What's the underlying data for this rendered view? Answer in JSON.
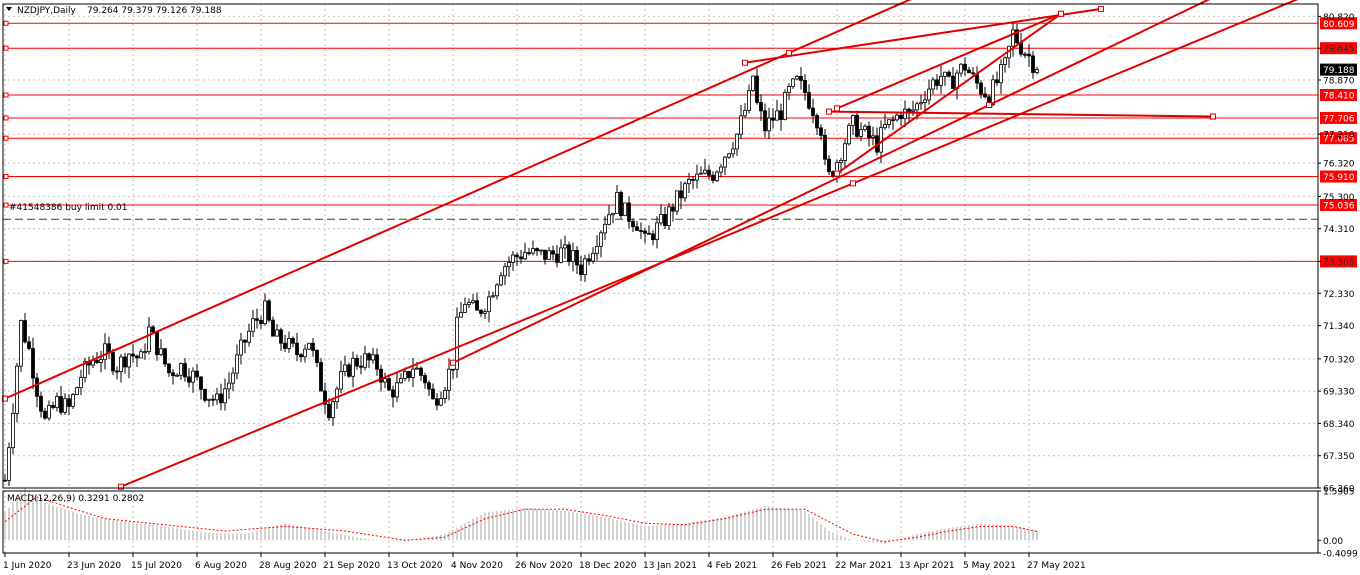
{
  "header": {
    "symbol_label": "NZDJPY,Daily",
    "ohlc_label": "79.264 79.379 79.126 79.188"
  },
  "order_label": "#41548386 buy limit 0.01",
  "colors": {
    "background": "#ffffff",
    "grid": "#c0c0c0",
    "candle": "#000000",
    "level_line": "#ff0000",
    "trend_line": "#e00000",
    "price_tag_bg": "#ff0000",
    "price_tag_text": "#ffffff",
    "current_tag_bg": "#000000",
    "order_line": "#006400",
    "macd_hist": "#c8c8c8",
    "macd_signal": "#ff0000"
  },
  "chart_data": {
    "type": "candlestick",
    "symbol": "NZDJPY",
    "timeframe": "Daily",
    "ylim": [
      66.36,
      81.2
    ],
    "price_ticks": [
      "80.820",
      "79.845",
      "78.870",
      "77.210",
      "76.320",
      "75.300",
      "74.310",
      "73.308",
      "72.330",
      "71.340",
      "70.320",
      "69.330",
      "68.340",
      "67.350",
      "66.360"
    ],
    "x_labels": [
      "1 Jun 2020",
      "23 Jun 2020",
      "15 Jul 2020",
      "6 Aug 2020",
      "28 Aug 2020",
      "21 Sep 2020",
      "13 Oct 2020",
      "4 Nov 2020",
      "26 Nov 2020",
      "18 Dec 2020",
      "13 Jan 2021",
      "4 Feb 2021",
      "26 Feb 2021",
      "22 Mar 2021",
      "13 Apr 2021",
      "5 May 2021",
      "27 May 2021"
    ],
    "x_label_bars": [
      0,
      16,
      32,
      48,
      64,
      80,
      96,
      112,
      128,
      144,
      160,
      176,
      192,
      208,
      224,
      240,
      256
    ],
    "close_path": [
      [
        0,
        66.6
      ],
      [
        2,
        68.9
      ],
      [
        4,
        71.4
      ],
      [
        6,
        70.6
      ],
      [
        8,
        69.4
      ],
      [
        10,
        68.4
      ],
      [
        13,
        69.0
      ],
      [
        16,
        68.8
      ],
      [
        19,
        69.8
      ],
      [
        22,
        70.3
      ],
      [
        25,
        70.5
      ],
      [
        28,
        70.1
      ],
      [
        31,
        70.5
      ],
      [
        34,
        70.3
      ],
      [
        36,
        71.2
      ],
      [
        38,
        70.7
      ],
      [
        41,
        69.9
      ],
      [
        44,
        70.1
      ],
      [
        47,
        69.8
      ],
      [
        50,
        69.3
      ],
      [
        53,
        69.0
      ],
      [
        56,
        69.6
      ],
      [
        59,
        70.6
      ],
      [
        62,
        71.4
      ],
      [
        65,
        71.8
      ],
      [
        67,
        71.0
      ],
      [
        70,
        70.8
      ],
      [
        73,
        70.5
      ],
      [
        76,
        70.9
      ],
      [
        79,
        69.5
      ],
      [
        81,
        68.8
      ],
      [
        84,
        69.7
      ],
      [
        87,
        70.2
      ],
      [
        90,
        70.3
      ],
      [
        93,
        70.1
      ],
      [
        96,
        69.3
      ],
      [
        99,
        69.5
      ],
      [
        102,
        70.1
      ],
      [
        105,
        69.7
      ],
      [
        107,
        69.0
      ],
      [
        110,
        69.6
      ],
      [
        112,
        70.2
      ],
      [
        113,
        71.3
      ],
      [
        115,
        72.1
      ],
      [
        118,
        71.7
      ],
      [
        121,
        72.2
      ],
      [
        124,
        73.1
      ],
      [
        127,
        73.4
      ],
      [
        130,
        73.6
      ],
      [
        133,
        73.5
      ],
      [
        136,
        73.5
      ],
      [
        139,
        73.6
      ],
      [
        142,
        73.4
      ],
      [
        144,
        73.1
      ],
      [
        147,
        73.8
      ],
      [
        150,
        74.6
      ],
      [
        153,
        75.2
      ],
      [
        155,
        74.8
      ],
      [
        158,
        74.5
      ],
      [
        160,
        73.9
      ],
      [
        162,
        74.2
      ],
      [
        165,
        74.6
      ],
      [
        168,
        75.2
      ],
      [
        171,
        75.7
      ],
      [
        174,
        75.9
      ],
      [
        177,
        76.0
      ],
      [
        180,
        76.6
      ],
      [
        183,
        77.2
      ],
      [
        186,
        78.3
      ],
      [
        187,
        79.0
      ],
      [
        188,
        78.1
      ],
      [
        190,
        77.4
      ],
      [
        192,
        77.7
      ],
      [
        194,
        77.9
      ],
      [
        196,
        78.5
      ],
      [
        198,
        78.8
      ],
      [
        200,
        78.5
      ],
      [
        202,
        78.0
      ],
      [
        204,
        77.4
      ],
      [
        205,
        76.2
      ],
      [
        206,
        75.9
      ],
      [
        208,
        76.4
      ],
      [
        210,
        77.0
      ],
      [
        212,
        77.5
      ],
      [
        214,
        77.3
      ],
      [
        216,
        77.1
      ],
      [
        218,
        76.9
      ],
      [
        220,
        77.4
      ],
      [
        222,
        77.6
      ],
      [
        224,
        77.9
      ],
      [
        226,
        77.8
      ],
      [
        228,
        78.1
      ],
      [
        230,
        78.5
      ],
      [
        232,
        78.8
      ],
      [
        234,
        79.0
      ],
      [
        236,
        78.7
      ],
      [
        238,
        79.1
      ],
      [
        240,
        79.3
      ],
      [
        242,
        78.9
      ],
      [
        244,
        78.6
      ],
      [
        246,
        78.4
      ],
      [
        248,
        78.8
      ],
      [
        250,
        79.3
      ],
      [
        252,
        80.3
      ],
      [
        254,
        79.9
      ],
      [
        256,
        79.6
      ],
      [
        258,
        79.19
      ]
    ],
    "horizontal_levels": [
      "80.609",
      "79.845",
      "78.410",
      "77.706",
      "77.085",
      "75.910",
      "75.036",
      "73.308"
    ],
    "current_price": "79.188",
    "trend_lines": [
      {
        "from": [
          0,
          69.1
        ],
        "to": [
          196,
          79.7
        ],
        "extend": true
      },
      {
        "from": [
          29,
          66.4
        ],
        "to": [
          212,
          75.7
        ],
        "extend": true
      },
      {
        "from": [
          112,
          70.2
        ],
        "to": [
          246,
          78.1
        ],
        "extend": true
      },
      {
        "from": [
          185,
          79.4
        ],
        "to": [
          274,
          81.05
        ]
      },
      {
        "from": [
          208,
          78.0
        ],
        "to": [
          264,
          80.9
        ]
      },
      {
        "from": [
          208,
          76.0
        ],
        "to": [
          264,
          80.9
        ]
      },
      {
        "from": [
          206,
          77.9
        ],
        "to": [
          302,
          77.75
        ]
      }
    ],
    "order_level": 74.6,
    "macd": {
      "label": "MACD(12,26,9) 0.3291 0.2802",
      "ticks": [
        "1.5905",
        "0.00",
        "-0.4099"
      ],
      "ylim": [
        -0.4099,
        1.5905
      ],
      "hist_path": [
        [
          0,
          0.9
        ],
        [
          5,
          1.7
        ],
        [
          10,
          1.2
        ],
        [
          20,
          0.8
        ],
        [
          30,
          0.6
        ],
        [
          40,
          0.45
        ],
        [
          50,
          0.25
        ],
        [
          60,
          0.2
        ],
        [
          70,
          0.55
        ],
        [
          80,
          0.3
        ],
        [
          90,
          0.05
        ],
        [
          100,
          -0.05
        ],
        [
          110,
          0.2
        ],
        [
          120,
          0.9
        ],
        [
          130,
          1.05
        ],
        [
          140,
          0.95
        ],
        [
          150,
          0.75
        ],
        [
          160,
          0.45
        ],
        [
          170,
          0.55
        ],
        [
          180,
          0.75
        ],
        [
          190,
          1.1
        ],
        [
          200,
          0.95
        ],
        [
          206,
          0.3
        ],
        [
          212,
          0.0
        ],
        [
          220,
          -0.1
        ],
        [
          228,
          0.2
        ],
        [
          236,
          0.4
        ],
        [
          244,
          0.55
        ],
        [
          252,
          0.45
        ],
        [
          258,
          0.33
        ]
      ],
      "signal_path": [
        [
          0,
          0.6
        ],
        [
          8,
          1.4
        ],
        [
          15,
          1.1
        ],
        [
          25,
          0.7
        ],
        [
          40,
          0.5
        ],
        [
          55,
          0.3
        ],
        [
          70,
          0.45
        ],
        [
          85,
          0.3
        ],
        [
          100,
          0.0
        ],
        [
          110,
          0.1
        ],
        [
          120,
          0.7
        ],
        [
          130,
          1.0
        ],
        [
          140,
          1.0
        ],
        [
          150,
          0.8
        ],
        [
          160,
          0.55
        ],
        [
          170,
          0.5
        ],
        [
          180,
          0.7
        ],
        [
          190,
          1.0
        ],
        [
          200,
          1.0
        ],
        [
          206,
          0.6
        ],
        [
          212,
          0.2
        ],
        [
          220,
          -0.05
        ],
        [
          228,
          0.1
        ],
        [
          236,
          0.3
        ],
        [
          244,
          0.45
        ],
        [
          252,
          0.45
        ],
        [
          258,
          0.28
        ]
      ]
    }
  }
}
